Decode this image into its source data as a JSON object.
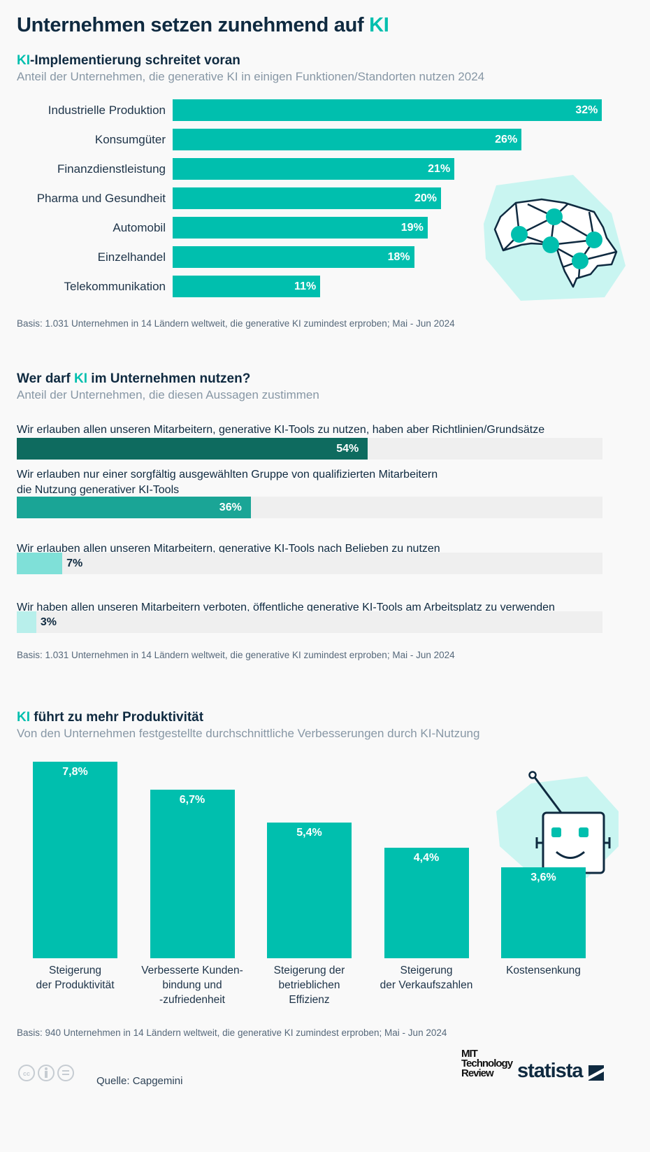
{
  "title": {
    "prefix": "Unternehmen setzen zunehmend auf ",
    "accent": "KI"
  },
  "colors": {
    "accent": "#00bfae",
    "dark": "#0f2a40",
    "bar_dark": "#0e6b5f",
    "bar_mid": "#1aa596",
    "bar_light": "#7fe0d8",
    "bar_lighter": "#b8efeb",
    "track": "#efefef",
    "illustration_bg": "#c9f5f1"
  },
  "section1": {
    "title_accent": "KI",
    "title_rest": "-Implementierung schreitet voran",
    "subtitle": "Anteil der Unternehmen, die generative KI in einigen Funktionen/Standorten nutzen 2024",
    "basis": "Basis: 1.031 Unternehmen in 14 Ländern weltweit, die generative KI zumindest erproben; Mai - Jun 2024",
    "illustration": "brain-network-icon"
  },
  "section2": {
    "title_pre": "Wer darf ",
    "title_accent": "KI",
    "title_post": " im Unternehmen nutzen?",
    "subtitle": "Anteil der Unternehmen, die diesen Aussagen zustimmen",
    "basis": "Basis: 1.031 Unternehmen in 14 Ländern weltweit, die generative KI zumindest erproben; Mai - Jun 2024"
  },
  "section3": {
    "title_accent": "KI",
    "title_rest": " führt zu mehr Produktivität",
    "subtitle": "Von den Unternehmen festgestellte durchschnittliche Verbesserungen durch KI-Nutzung",
    "basis": "Basis: 940 Unternehmen in 14 Ländern weltweit, die generative KI zumindest erproben; Mai - Jun 2024",
    "illustration": "robot-face-icon"
  },
  "chart_data": [
    {
      "type": "bar",
      "orientation": "horizontal",
      "unit": "%",
      "categories": [
        "Industrielle Produktion",
        "Konsumgüter",
        "Finanzdienstleistung",
        "Pharma und Gesundheit",
        "Automobil",
        "Einzelhandel",
        "Telekommunikation"
      ],
      "values": [
        32,
        26,
        21,
        20,
        19,
        18,
        11
      ],
      "labels": [
        "32%",
        "26%",
        "21%",
        "20%",
        "19%",
        "18%",
        "11%"
      ]
    },
    {
      "type": "bar",
      "orientation": "horizontal",
      "unit": "%",
      "categories": [
        "Wir erlauben allen unseren Mitarbeitern, generative KI-Tools zu nutzen, haben aber Richtlinien/Grundsätze",
        "Wir erlauben nur einer sorgfältig ausgewählten Gruppe von qualifizierten Mitarbeitern\ndie Nutzung generativer KI-Tools",
        "Wir erlauben allen unseren Mitarbeitern, generative KI-Tools nach Belieben zu nutzen",
        "Wir haben allen unseren Mitarbeitern verboten, öffentliche generative KI-Tools am Arbeitsplatz zu verwenden"
      ],
      "values": [
        54,
        36,
        7,
        3
      ],
      "labels": [
        "54%",
        "36%",
        "7%",
        "3%"
      ]
    },
    {
      "type": "bar",
      "orientation": "vertical",
      "unit": "%",
      "categories": [
        "Steigerung\nder Produktivität",
        "Verbesserte Kunden-\nbindung und\n-zufriedenheit",
        "Steigerung der\nbetrieblichen\nEffizienz",
        "Steigerung\nder Verkaufszahlen",
        "Kostensenkung"
      ],
      "values": [
        7.8,
        6.7,
        5.4,
        4.4,
        3.6
      ],
      "labels": [
        "7,8%",
        "6,7%",
        "5,4%",
        "4,4%",
        "3,6%"
      ]
    }
  ],
  "footer": {
    "source": "Quelle: Capgemini",
    "logo_partner": "MIT Technology Review",
    "logo_partner_lines": [
      "MIT",
      "Technology",
      "Review"
    ],
    "logo_brand": "statista",
    "license_icons": [
      "cc-icon",
      "by-icon",
      "nd-icon"
    ]
  }
}
